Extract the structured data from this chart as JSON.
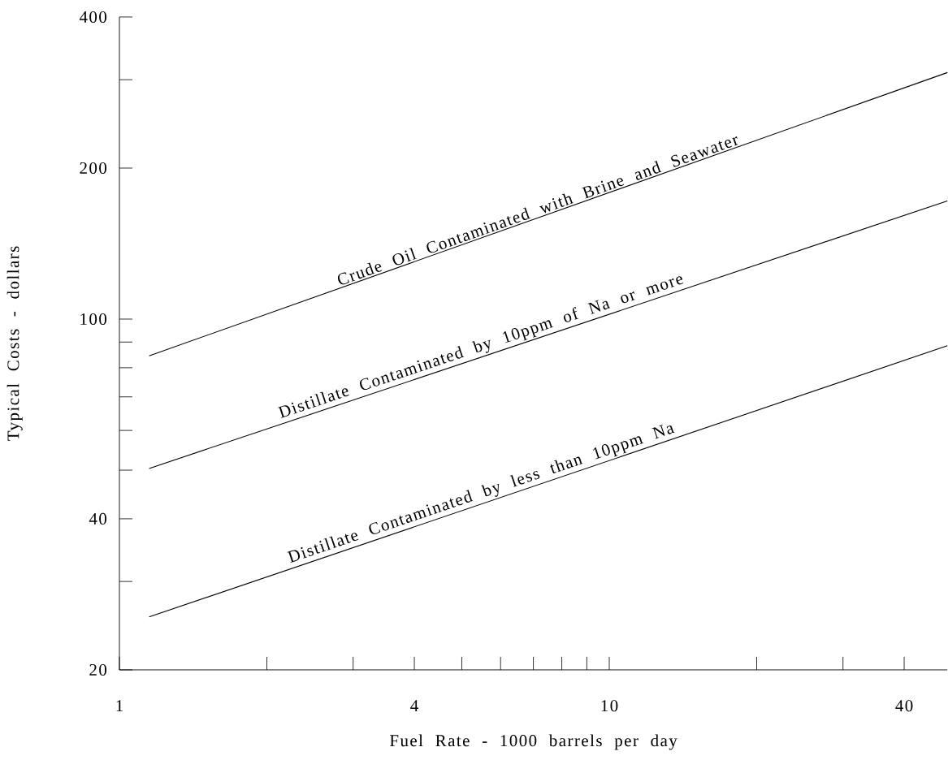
{
  "chart_data": {
    "type": "line",
    "xlabel": "Fuel Rate - 1000 barrels per day",
    "ylabel": "Typical Costs - dollars",
    "log": "xy",
    "xlim": [
      1,
      49
    ],
    "ylim": [
      20,
      400
    ],
    "xticks": [
      1,
      {
        "value": 2,
        "label": null
      },
      {
        "value": 3,
        "label": null
      },
      4,
      {
        "value": 5,
        "label": null
      },
      {
        "value": 6,
        "label": null
      },
      {
        "value": 7,
        "label": null
      },
      {
        "value": 8,
        "label": null
      },
      {
        "value": 9,
        "label": null
      },
      10,
      {
        "value": 20,
        "label": null
      },
      {
        "value": 30,
        "label": null
      },
      40
    ],
    "yticks": [
      20,
      {
        "value": 30,
        "label": null
      },
      40,
      {
        "value": 50,
        "label": null
      },
      {
        "value": 60,
        "label": null
      },
      {
        "value": 70,
        "label": null
      },
      {
        "value": 80,
        "label": null
      },
      {
        "value": 90,
        "label": null
      },
      100,
      200,
      {
        "value": 300,
        "label": null
      },
      400
    ],
    "x": [
      1.15,
      49
    ],
    "series": [
      {
        "name": "Crude Oil Contaminated with Brine and Seawater",
        "color": "#000000",
        "values": [
          84.5,
          310
        ]
      },
      {
        "name": "Distillate Contaminated by 10ppm of Na or more",
        "color": "#000000",
        "values": [
          50.4,
          172
        ]
      },
      {
        "name": "Distillate Contaminated by less than 10ppm Na",
        "color": "#000000",
        "values": [
          25.5,
          88.5
        ]
      }
    ]
  }
}
